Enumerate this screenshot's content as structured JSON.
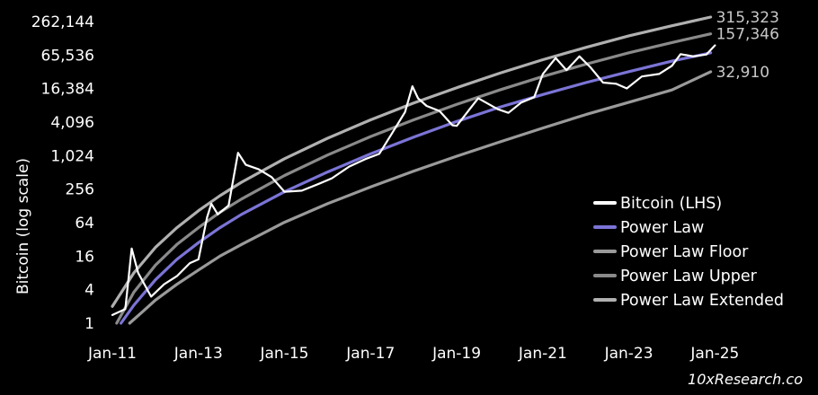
{
  "chart_data": {
    "type": "line",
    "title": "",
    "ylabel": "Bitcoin (log scale)",
    "xlabel": "",
    "y_scale": "log2",
    "ylim": [
      1,
      262144
    ],
    "xlim": [
      "2011-01",
      "2025-03"
    ],
    "y_ticks": [
      "1",
      "4",
      "16",
      "64",
      "256",
      "1,024",
      "4,096",
      "16,384",
      "65,536",
      "262,144"
    ],
    "x_ticks": [
      "Jan-11",
      "Jan-13",
      "Jan-15",
      "Jan-17",
      "Jan-19",
      "Jan-21",
      "Jan-23",
      "Jan-25"
    ],
    "grid": false,
    "legend_position": "bottom-right",
    "legend": [
      {
        "label": "Bitcoin (LHS)",
        "color": "#ffffff"
      },
      {
        "label": "Power Law",
        "color": "#7b74d6"
      },
      {
        "label": "Power Law Floor",
        "color": "#9a9a9a"
      },
      {
        "label": "Power Law Upper",
        "color": "#8a8a8a"
      },
      {
        "label": "Power Law Extended",
        "color": "#b0b0b0"
      }
    ],
    "end_labels": [
      "315,323",
      "157,346",
      "32,910"
    ],
    "source_text": "10xResearch.co",
    "series": [
      {
        "name": "Bitcoin (LHS)",
        "color": "#ffffff",
        "x": [
          2011.0,
          2011.3,
          2011.45,
          2011.6,
          2011.9,
          2012.2,
          2012.5,
          2012.8,
          2013.0,
          2013.2,
          2013.3,
          2013.45,
          2013.7,
          2013.92,
          2014.1,
          2014.4,
          2014.7,
          2015.0,
          2015.4,
          2015.8,
          2016.1,
          2016.5,
          2016.9,
          2017.2,
          2017.5,
          2017.8,
          2017.97,
          2018.1,
          2018.3,
          2018.6,
          2018.9,
          2019.0,
          2019.3,
          2019.5,
          2019.7,
          2019.95,
          2020.2,
          2020.5,
          2020.8,
          2021.0,
          2021.3,
          2021.55,
          2021.85,
          2022.1,
          2022.4,
          2022.7,
          2022.95,
          2023.3,
          2023.7,
          2024.0,
          2024.2,
          2024.5,
          2024.8,
          2025.0
        ],
        "y": [
          1.4,
          1.8,
          22,
          8,
          3,
          5,
          7,
          12,
          14,
          80,
          140,
          90,
          130,
          1150,
          700,
          580,
          420,
          230,
          240,
          320,
          400,
          650,
          900,
          1100,
          2600,
          6200,
          18000,
          11000,
          8000,
          6500,
          3600,
          3500,
          7000,
          11000,
          9000,
          7000,
          6000,
          9200,
          11500,
          30000,
          58000,
          35000,
          62000,
          40000,
          21000,
          20000,
          16500,
          27000,
          30000,
          42000,
          68000,
          62000,
          67000,
          98000
        ]
      },
      {
        "name": "Power Law",
        "color": "#7b74d6",
        "x": [
          2011.2,
          2011.5,
          2012.0,
          2012.5,
          2013.0,
          2013.5,
          2014.0,
          2015.0,
          2016.0,
          2017.0,
          2018.0,
          2019.0,
          2020.0,
          2021.0,
          2022.0,
          2023.0,
          2024.0,
          2024.9
        ],
        "y": [
          1,
          2.1,
          6,
          14,
          28,
          52,
          90,
          230,
          520,
          1100,
          2200,
          4200,
          7600,
          12800,
          21000,
          33000,
          51000,
          72000
        ]
      },
      {
        "name": "Power Law Floor",
        "color": "#9a9a9a",
        "x": [
          2011.4,
          2011.7,
          2012.0,
          2012.5,
          2013.0,
          2013.5,
          2014.0,
          2015.0,
          2016.0,
          2017.0,
          2018.0,
          2019.0,
          2020.0,
          2021.0,
          2022.0,
          2023.0,
          2024.0,
          2024.9
        ],
        "y": [
          1,
          1.6,
          2.6,
          5,
          9,
          16,
          26,
          65,
          140,
          280,
          540,
          1000,
          1800,
          3200,
          5600,
          9300,
          15500,
          32910
        ]
      },
      {
        "name": "Power Law Upper",
        "color": "#8a8a8a",
        "x": [
          2011.1,
          2011.5,
          2012.0,
          2012.5,
          2013.0,
          2013.5,
          2014.0,
          2015.0,
          2016.0,
          2017.0,
          2018.0,
          2019.0,
          2020.0,
          2021.0,
          2022.0,
          2023.0,
          2024.0,
          2024.9
        ],
        "y": [
          1,
          3.6,
          11,
          26,
          52,
          98,
          170,
          450,
          1050,
          2250,
          4500,
          8500,
          15500,
          27000,
          45000,
          72000,
          110000,
          157346
        ]
      },
      {
        "name": "Power Law Extended",
        "color": "#b0b0b0",
        "x": [
          2011.0,
          2011.5,
          2012.0,
          2012.5,
          2013.0,
          2013.5,
          2014.0,
          2015.0,
          2016.0,
          2017.0,
          2018.0,
          2019.0,
          2020.0,
          2021.0,
          2022.0,
          2023.0,
          2024.0,
          2024.9
        ],
        "y": [
          2,
          8,
          23,
          52,
          105,
          195,
          340,
          900,
          2100,
          4500,
          9000,
          17000,
          31000,
          54000,
          90000,
          145000,
          220000,
          315323
        ]
      }
    ]
  }
}
